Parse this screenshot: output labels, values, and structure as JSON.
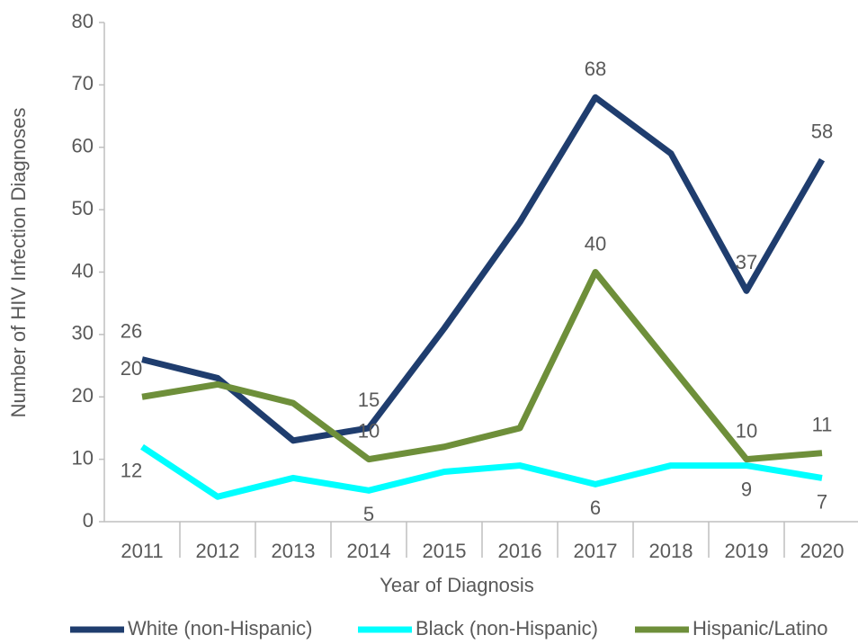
{
  "chart_data": {
    "type": "line",
    "x_label": "Year of Diagnosis",
    "y_label": "Number of HIV Infection Diagnoses",
    "categories": [
      "2011",
      "2012",
      "2013",
      "2014",
      "2015",
      "2016",
      "2017",
      "2018",
      "2019",
      "2020"
    ],
    "series": [
      {
        "name": "White (non-Hispanic)",
        "color": "#1f3d6e",
        "values": [
          26,
          23,
          13,
          15,
          31,
          48,
          68,
          59,
          37,
          58
        ],
        "value_labels": [
          "26",
          null,
          null,
          "15",
          null,
          null,
          "68",
          null,
          "37",
          "58"
        ]
      },
      {
        "name": "Black (non-Hispanic)",
        "color": "#00ffff",
        "values": [
          12,
          4,
          7,
          5,
          8,
          9,
          6,
          9,
          9,
          7
        ],
        "value_labels": [
          "12",
          null,
          null,
          "5",
          null,
          null,
          "6",
          null,
          "9",
          "7"
        ]
      },
      {
        "name": "Hispanic/Latino",
        "color": "#6e8f3a",
        "values": [
          20,
          22,
          19,
          10,
          12,
          15,
          40,
          25,
          10,
          11
        ],
        "value_labels": [
          "20",
          null,
          null,
          "10",
          null,
          null,
          "40",
          null,
          "10",
          "11"
        ]
      }
    ],
    "ylim": [
      0,
      80
    ],
    "yticks": [
      0,
      10,
      20,
      30,
      40,
      50,
      60,
      70,
      80
    ],
    "legend": "bottom"
  }
}
